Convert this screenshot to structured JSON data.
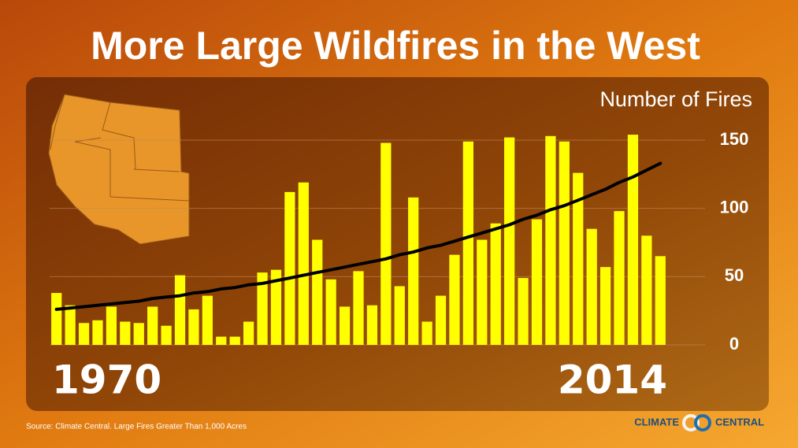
{
  "chart_data": {
    "type": "bar",
    "title": "More Large Wildfires in the West",
    "y_axis_label": "Number of Fires",
    "categories": [
      "1970",
      null,
      null,
      null,
      null,
      null,
      null,
      null,
      null,
      null,
      null,
      null,
      null,
      null,
      null,
      null,
      null,
      null,
      null,
      null,
      null,
      null,
      null,
      null,
      null,
      null,
      null,
      null,
      null,
      null,
      null,
      null,
      null,
      null,
      null,
      null,
      null,
      null,
      null,
      null,
      null,
      null,
      null,
      null,
      "2014"
    ],
    "values": [
      38,
      29,
      16,
      18,
      28,
      17,
      16,
      28,
      14,
      51,
      26,
      36,
      6,
      6,
      17,
      53,
      55,
      112,
      119,
      77,
      48,
      28,
      54,
      29,
      148,
      43,
      108,
      17,
      36,
      66,
      149,
      77,
      89,
      152,
      49,
      92,
      153,
      149,
      126,
      85,
      57,
      98,
      154,
      80,
      65
    ],
    "color": "#ffff00",
    "trend": {
      "color": "#000000",
      "values": [
        26,
        27,
        28,
        29,
        30,
        31,
        32,
        34,
        35,
        36,
        38,
        39,
        41,
        42,
        44,
        45,
        47,
        49,
        51,
        53,
        55,
        57,
        59,
        61,
        63,
        66,
        68,
        71,
        73,
        76,
        79,
        82,
        85,
        88,
        92,
        95,
        99,
        102,
        106,
        110,
        114,
        119,
        123,
        128,
        133
      ]
    },
    "ylim": [
      0,
      160
    ],
    "yticks": [
      0,
      50,
      100,
      150
    ],
    "grid": true,
    "source": "Source: Climate Central. Large Fires Greater Than 1,000 Acres",
    "logo_left": "CLIMATE",
    "logo_right": "CENTRAL"
  }
}
